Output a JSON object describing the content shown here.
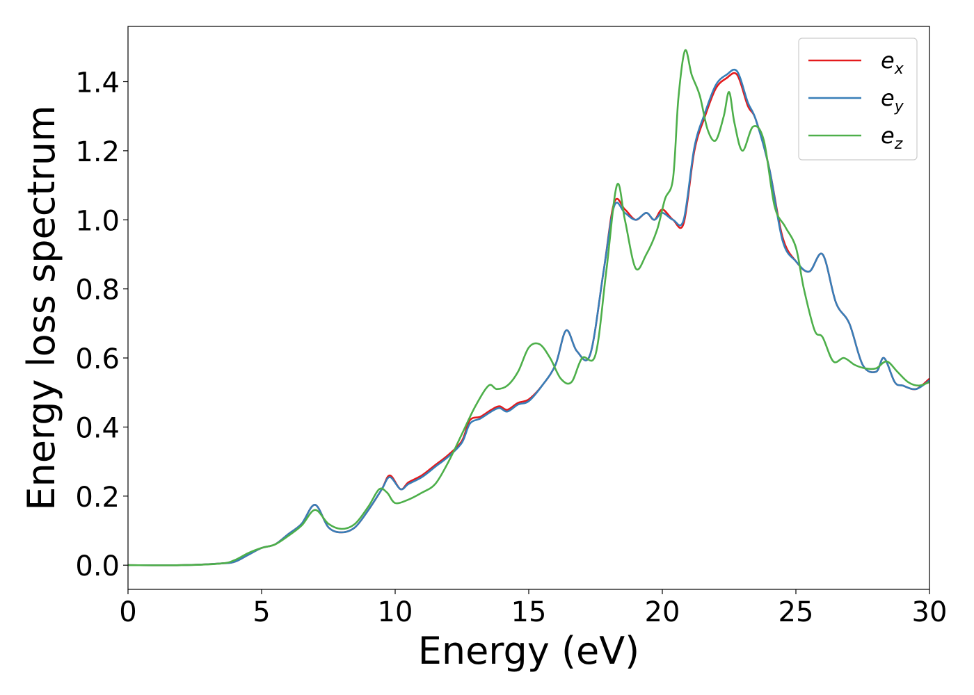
{
  "chart_data": {
    "type": "line",
    "xlabel": "Energy (eV)",
    "ylabel": "Energy loss spectrum",
    "xlim": [
      0,
      30
    ],
    "ylim": [
      -0.07,
      1.56
    ],
    "xticks": [
      0,
      5,
      10,
      15,
      20,
      25,
      30
    ],
    "xtick_labels": [
      "0",
      "5",
      "10",
      "15",
      "20",
      "25",
      "30"
    ],
    "yticks": [
      0.0,
      0.2,
      0.4,
      0.6,
      0.8,
      1.0,
      1.2,
      1.4
    ],
    "ytick_labels": [
      "0.0",
      "0.2",
      "0.4",
      "0.6",
      "0.8",
      "1.0",
      "1.2",
      "1.4"
    ],
    "grid": false,
    "legend_position": "top-right",
    "series": [
      {
        "name": "e_x",
        "legend_base": "e",
        "legend_sub": "x",
        "color": "#e41a1c",
        "x": [
          0,
          2,
          3.5,
          4,
          4.5,
          5,
          5.5,
          6,
          6.5,
          7,
          7.5,
          8,
          8.5,
          9,
          9.5,
          9.8,
          10.2,
          10.5,
          11,
          11.5,
          12,
          12.5,
          12.8,
          13.2,
          13.6,
          13.9,
          14.2,
          14.6,
          15,
          15.5,
          16,
          16.4,
          16.8,
          17.3,
          17.8,
          18.2,
          18.6,
          19,
          19.4,
          19.7,
          20,
          20.4,
          20.8,
          21.2,
          21.6,
          22,
          22.4,
          22.8,
          23.2,
          23.5,
          24,
          24.5,
          25,
          25.5,
          26,
          26.5,
          27,
          27.5,
          28,
          28.3,
          28.7,
          29,
          29.5,
          30
        ],
        "y": [
          0.0,
          0.0,
          0.005,
          0.01,
          0.03,
          0.05,
          0.06,
          0.09,
          0.12,
          0.175,
          0.11,
          0.095,
          0.11,
          0.16,
          0.22,
          0.26,
          0.22,
          0.24,
          0.26,
          0.29,
          0.32,
          0.36,
          0.42,
          0.43,
          0.45,
          0.46,
          0.45,
          0.47,
          0.48,
          0.52,
          0.58,
          0.68,
          0.62,
          0.61,
          0.85,
          1.05,
          1.03,
          1.0,
          1.02,
          1.0,
          1.03,
          1.0,
          0.99,
          1.2,
          1.3,
          1.38,
          1.41,
          1.42,
          1.33,
          1.29,
          1.15,
          0.95,
          0.88,
          0.85,
          0.9,
          0.76,
          0.7,
          0.58,
          0.56,
          0.6,
          0.53,
          0.52,
          0.51,
          0.54
        ]
      },
      {
        "name": "e_y",
        "legend_base": "e",
        "legend_sub": "y",
        "color": "#377eb8",
        "x": [
          0,
          2,
          3.5,
          4,
          4.5,
          5,
          5.5,
          6,
          6.5,
          7,
          7.5,
          8,
          8.5,
          9,
          9.5,
          9.8,
          10.2,
          10.5,
          11,
          11.5,
          12,
          12.5,
          12.8,
          13.2,
          13.6,
          13.9,
          14.2,
          14.6,
          15,
          15.5,
          16,
          16.4,
          16.8,
          17.3,
          17.8,
          18.2,
          18.6,
          19,
          19.4,
          19.7,
          20,
          20.4,
          20.8,
          21.2,
          21.6,
          22,
          22.4,
          22.8,
          23.2,
          23.5,
          24,
          24.5,
          25,
          25.5,
          26,
          26.5,
          27,
          27.5,
          28,
          28.3,
          28.7,
          29,
          29.5,
          30
        ],
        "y": [
          0.0,
          0.0,
          0.005,
          0.01,
          0.03,
          0.05,
          0.06,
          0.09,
          0.12,
          0.175,
          0.11,
          0.095,
          0.11,
          0.16,
          0.22,
          0.255,
          0.22,
          0.235,
          0.255,
          0.285,
          0.315,
          0.355,
          0.41,
          0.425,
          0.445,
          0.455,
          0.445,
          0.465,
          0.475,
          0.52,
          0.58,
          0.68,
          0.62,
          0.61,
          0.85,
          1.04,
          1.02,
          1.0,
          1.02,
          1.0,
          1.02,
          1.0,
          1.0,
          1.21,
          1.31,
          1.39,
          1.42,
          1.43,
          1.34,
          1.29,
          1.15,
          0.94,
          0.88,
          0.85,
          0.9,
          0.76,
          0.7,
          0.58,
          0.56,
          0.6,
          0.53,
          0.52,
          0.51,
          0.535
        ]
      },
      {
        "name": "e_z",
        "legend_base": "e",
        "legend_sub": "z",
        "color": "#4daf4a",
        "x": [
          0,
          2,
          3.5,
          4,
          4.5,
          5,
          5.5,
          6,
          6.5,
          7,
          7.5,
          8,
          8.5,
          9,
          9.4,
          9.7,
          10,
          10.5,
          11,
          11.5,
          12,
          12.5,
          13,
          13.5,
          13.8,
          14.2,
          14.6,
          15,
          15.4,
          15.8,
          16.2,
          16.6,
          17,
          17.5,
          17.9,
          18.3,
          18.6,
          19,
          19.4,
          19.8,
          20.1,
          20.4,
          20.6,
          20.85,
          21.1,
          21.4,
          21.7,
          22.0,
          22.3,
          22.5,
          22.7,
          23.0,
          23.4,
          23.8,
          24.2,
          24.6,
          25,
          25.3,
          25.7,
          26,
          26.4,
          26.8,
          27.2,
          27.6,
          28,
          28.4,
          28.8,
          29.2,
          29.6,
          30
        ],
        "y": [
          0.0,
          0.0,
          0.005,
          0.015,
          0.035,
          0.05,
          0.06,
          0.085,
          0.115,
          0.16,
          0.12,
          0.105,
          0.12,
          0.17,
          0.22,
          0.21,
          0.18,
          0.19,
          0.21,
          0.235,
          0.3,
          0.38,
          0.46,
          0.52,
          0.51,
          0.52,
          0.56,
          0.63,
          0.64,
          0.6,
          0.54,
          0.53,
          0.6,
          0.61,
          0.85,
          1.1,
          1.0,
          0.86,
          0.9,
          0.97,
          1.06,
          1.12,
          1.35,
          1.49,
          1.42,
          1.36,
          1.26,
          1.23,
          1.3,
          1.37,
          1.28,
          1.2,
          1.27,
          1.23,
          1.04,
          0.98,
          0.92,
          0.8,
          0.68,
          0.66,
          0.59,
          0.6,
          0.58,
          0.57,
          0.57,
          0.59,
          0.56,
          0.53,
          0.52,
          0.53
        ]
      }
    ]
  }
}
